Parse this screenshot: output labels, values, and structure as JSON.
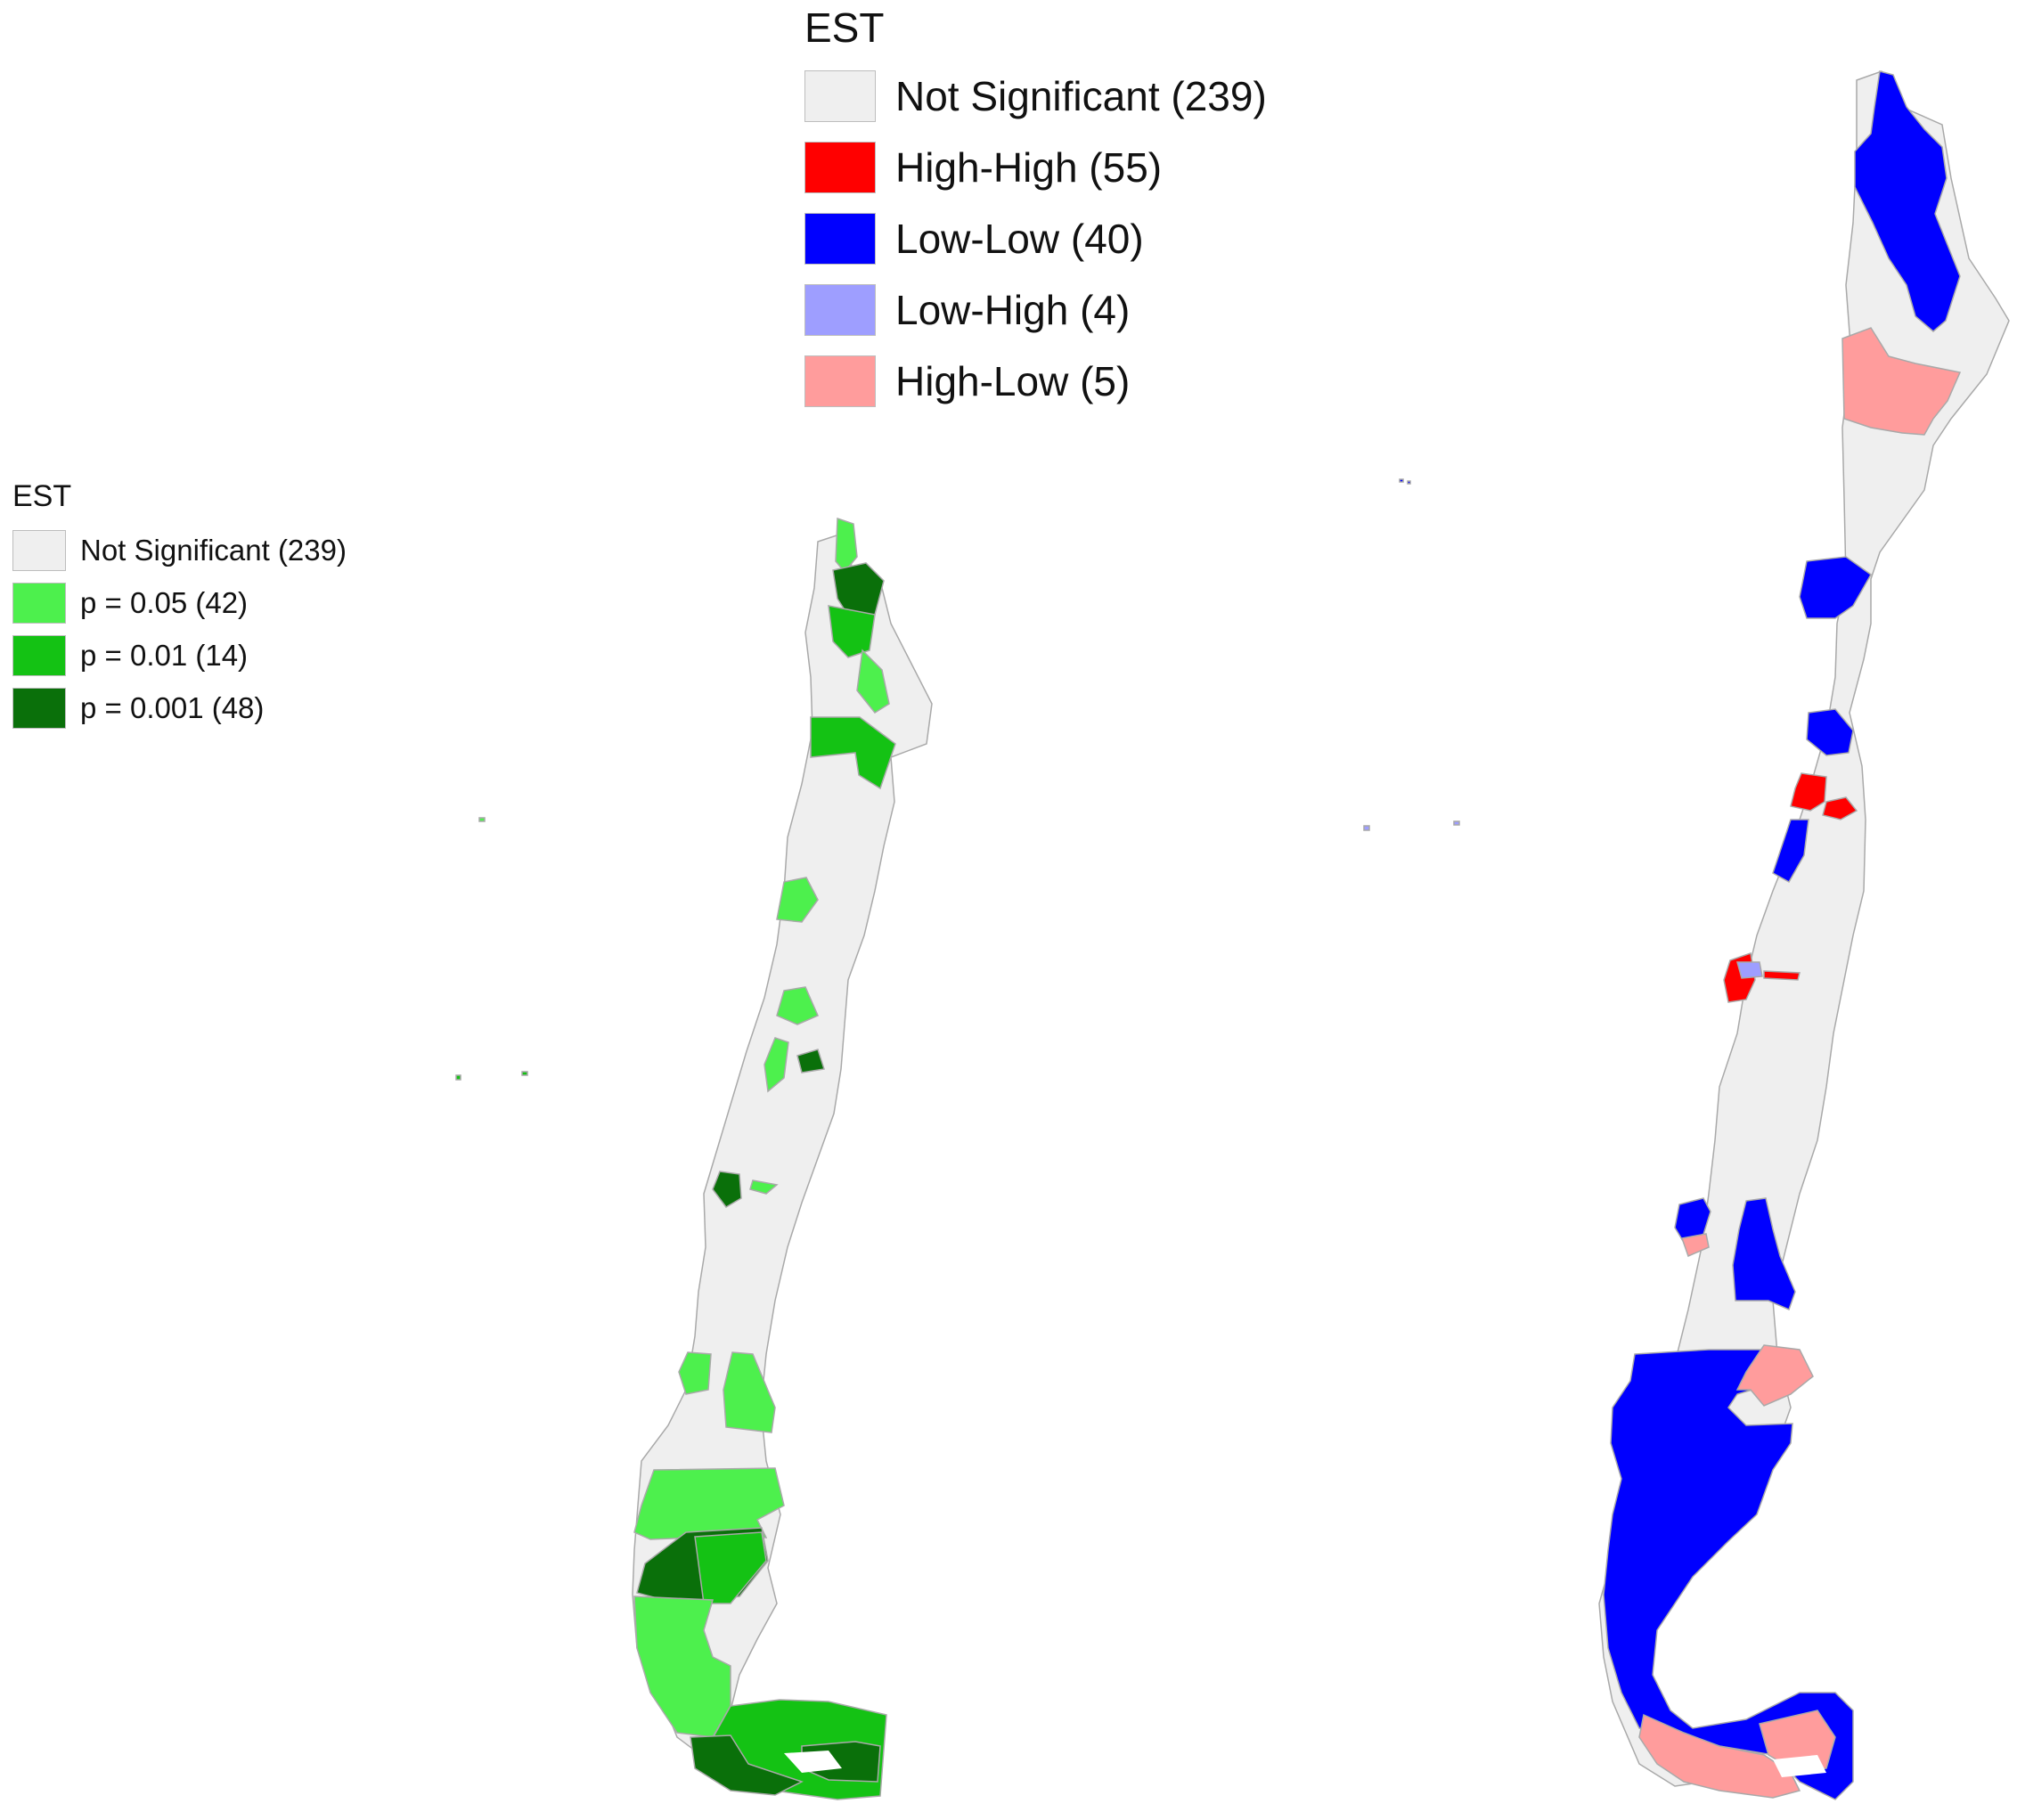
{
  "colors": {
    "not_significant": "#efefef",
    "high_high": "#ff0000",
    "low_low": "#0000ff",
    "low_high": "#9e9eff",
    "high_low": "#ff9c9c",
    "p005": "#4df04d",
    "p001": "#14c214",
    "p0001": "#0a700a",
    "border": "#a9a9a9"
  },
  "legend_cluster": {
    "title": "EST",
    "items": [
      {
        "key": "not_significant",
        "label": "Not Significant (239)"
      },
      {
        "key": "high_high",
        "label": "High-High (55)"
      },
      {
        "key": "low_low",
        "label": "Low-Low (40)"
      },
      {
        "key": "low_high",
        "label": "Low-High (4)"
      },
      {
        "key": "high_low",
        "label": "High-Low (5)"
      }
    ]
  },
  "legend_significance": {
    "title": "EST",
    "items": [
      {
        "key": "not_significant",
        "label": "Not Significant (239)"
      },
      {
        "key": "p005",
        "label": "p = 0.05 (42)"
      },
      {
        "key": "p001",
        "label": "p = 0.01 (14)"
      },
      {
        "key": "p0001",
        "label": "p = 0.001 (48)"
      }
    ]
  }
}
